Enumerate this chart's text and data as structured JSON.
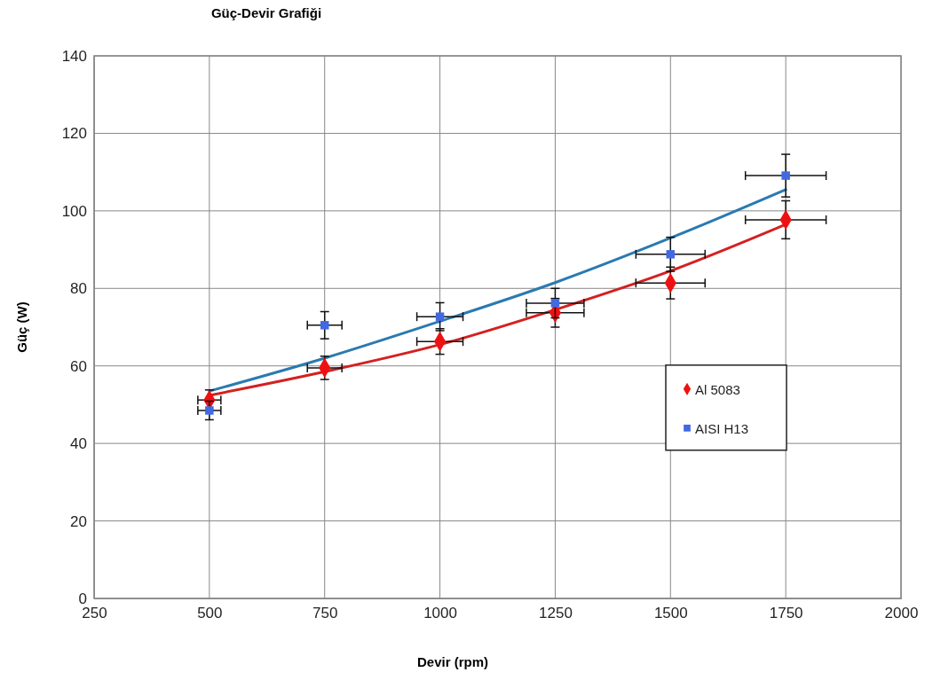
{
  "chart_data": {
    "type": "scatter",
    "title": "Güç-Devir Grafiği",
    "xlabel": "Devir (rpm)",
    "ylabel": "Güç (W)",
    "xlim": [
      250,
      2000
    ],
    "xticks": [
      250,
      500,
      750,
      1000,
      1250,
      1500,
      1750,
      2000
    ],
    "ylim": [
      0,
      140
    ],
    "yticks": [
      0,
      20,
      40,
      60,
      80,
      100,
      120,
      140
    ],
    "grid": true,
    "legend": "right",
    "series": [
      {
        "name": "Al 5083",
        "marker": "diamond",
        "color": "#ee1111",
        "x": [
          500,
          750,
          1000,
          1250,
          1500,
          1750
        ],
        "values": [
          51.2,
          59.5,
          66.3,
          73.7,
          81.4,
          97.7
        ],
        "errors": [
          2.6,
          3.0,
          3.3,
          3.7,
          4.1,
          4.9
        ],
        "xerrors": [
          25,
          37.5,
          50,
          62.5,
          75,
          87.5
        ]
      },
      {
        "name": "AISI H13",
        "marker": "square",
        "color": "#4169e1",
        "x": [
          500,
          750,
          1000,
          1250,
          1500,
          1750
        ],
        "values": [
          48.5,
          70.5,
          72.7,
          76.2,
          88.8,
          109.1
        ],
        "errors": [
          2.4,
          3.5,
          3.6,
          3.8,
          4.4,
          5.5
        ],
        "xerrors": [
          25,
          37.5,
          50,
          62.5,
          75,
          87.5
        ]
      },
      {
        "type": "line",
        "marker": "none",
        "line_style": "solid",
        "color": "#d42020",
        "x": [
          500,
          750,
          1000,
          1250,
          1500,
          1750
        ],
        "values": [
          52.4,
          58.5,
          65.5,
          74.5,
          84.5,
          96.5
        ]
      },
      {
        "type": "line",
        "marker": "none",
        "line_style": "solid",
        "color": "#2a7ab0",
        "x": [
          500,
          750,
          1000,
          1250,
          1500,
          1750
        ],
        "values": [
          53.5,
          62,
          71.5,
          81.5,
          93,
          105.5
        ]
      }
    ]
  }
}
